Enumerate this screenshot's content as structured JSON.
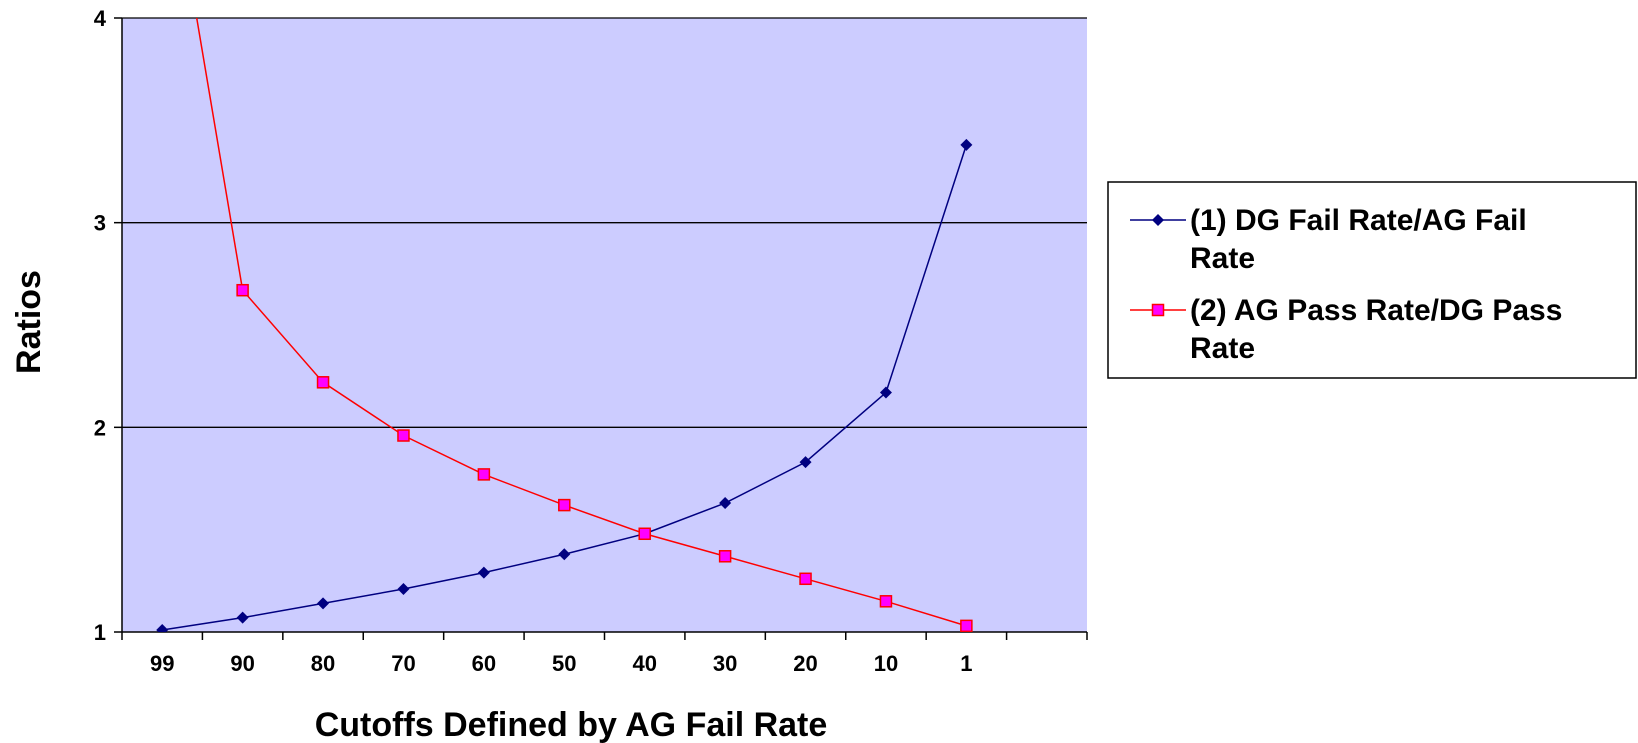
{
  "chart_data": {
    "type": "line",
    "xlabel": "Cutoffs Defined by AG Fail Rate",
    "ylabel": "Ratios",
    "ylim": [
      1,
      4
    ],
    "yticks": [
      "1",
      "2",
      "3",
      "4"
    ],
    "categories": [
      "99",
      "90",
      "80",
      "70",
      "60",
      "50",
      "40",
      "30",
      "20",
      "10",
      "1"
    ],
    "grid": "horizontal major gridlines",
    "legend_position": "right",
    "plot_background": "#ccccff",
    "series": [
      {
        "name_lines": [
          "(1) DG Fail Rate/AG Fail",
          "Rate"
        ],
        "color": "#000080",
        "marker": "diamond",
        "values": [
          1.01,
          1.07,
          1.14,
          1.21,
          1.29,
          1.38,
          1.48,
          1.63,
          1.83,
          2.17,
          3.38
        ]
      },
      {
        "name_lines": [
          "(2) AG Pass Rate/DG Pass",
          "Rate"
        ],
        "color": "#ff0000",
        "marker_fill": "#ff00ff",
        "marker": "square",
        "values": [
          5.0,
          2.67,
          2.22,
          1.96,
          1.77,
          1.62,
          1.48,
          1.37,
          1.26,
          1.15,
          1.03
        ]
      }
    ]
  }
}
